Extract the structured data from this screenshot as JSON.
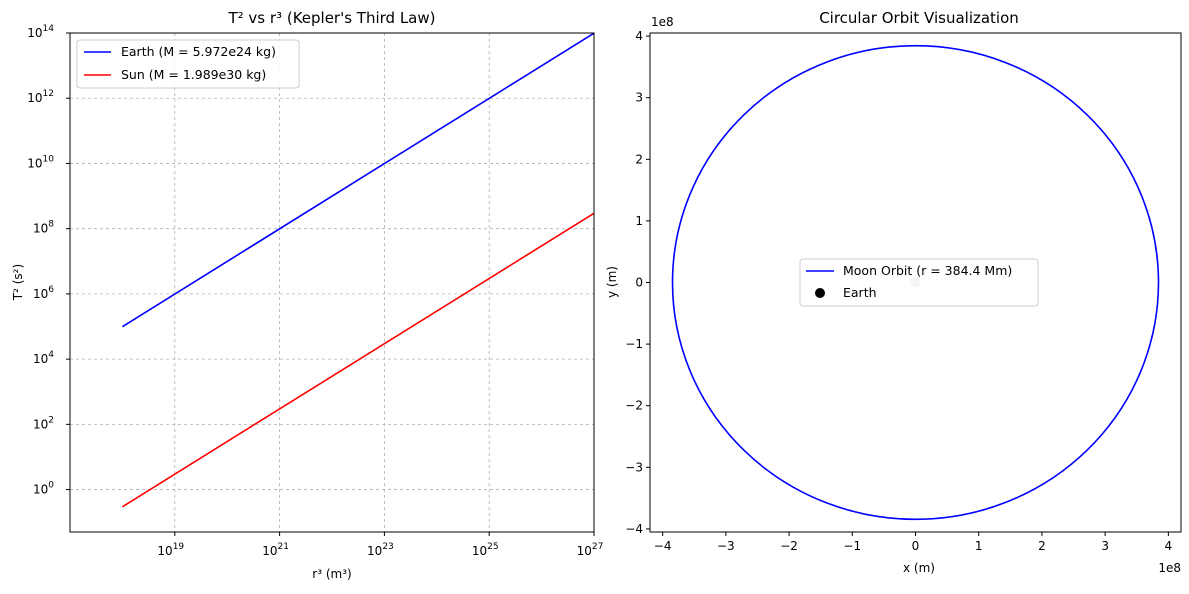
{
  "chart_data": [
    {
      "type": "line",
      "title": "T² vs r³ (Kepler's Third Law)",
      "xlabel": "r³ (m³)",
      "ylabel": "T² (s²)",
      "xscale": "log",
      "yscale": "log",
      "xlim": [
        1e+17,
        1e+27
      ],
      "ylim": [
        0.05,
        100000000000000.0
      ],
      "grid": true,
      "legend_position": "top-left",
      "x_ticks": [
        {
          "base": "10",
          "exp": "19",
          "value": 1e+19
        },
        {
          "base": "10",
          "exp": "21",
          "value": 1e+21
        },
        {
          "base": "10",
          "exp": "23",
          "value": 1e+23
        },
        {
          "base": "10",
          "exp": "25",
          "value": 1e+25
        },
        {
          "base": "10",
          "exp": "27",
          "value": 1e+27
        }
      ],
      "y_ticks": [
        {
          "base": "10",
          "exp": "0",
          "value": 1
        },
        {
          "base": "10",
          "exp": "2",
          "value": 100.0
        },
        {
          "base": "10",
          "exp": "4",
          "value": 10000.0
        },
        {
          "base": "10",
          "exp": "6",
          "value": 1000000.0
        },
        {
          "base": "10",
          "exp": "8",
          "value": 100000000.0
        },
        {
          "base": "10",
          "exp": "10",
          "value": 10000000000.0
        },
        {
          "base": "10",
          "exp": "12",
          "value": 1000000000000.0
        },
        {
          "base": "10",
          "exp": "14",
          "value": 100000000000000.0
        }
      ],
      "series": [
        {
          "name": "Earth (M = 5.972e24 kg)",
          "color": "#0000ff",
          "x": [
            1e+18,
            1e+27
          ],
          "y": [
            99000.0,
            99000000000000.0
          ]
        },
        {
          "name": "Sun (M = 1.989e30 kg)",
          "color": "#ff0000",
          "x": [
            1e+18,
            1e+27
          ],
          "y": [
            0.297,
            297000000.0
          ]
        }
      ]
    },
    {
      "type": "line",
      "title": "Circular Orbit Visualization",
      "xlabel": "x (m)",
      "ylabel": "y (m)",
      "x_offset_label": "1e8",
      "y_offset_label": "1e8",
      "xlim": [
        -4.2,
        4.2
      ],
      "ylim": [
        -4.05,
        4.05
      ],
      "grid": false,
      "aspect": "equal",
      "legend_position": "center",
      "x_ticks": [
        "−4",
        "−3",
        "−2",
        "−1",
        "0",
        "1",
        "2",
        "3",
        "4"
      ],
      "y_ticks": [
        "−4",
        "−3",
        "−2",
        "−1",
        "0",
        "1",
        "2",
        "3",
        "4"
      ],
      "orbit": {
        "name": "Moon Orbit (r = 384.4 Mm)",
        "radius": 3.844,
        "color": "#0000ff"
      },
      "body": {
        "name": "Earth",
        "x": 0,
        "y": 0,
        "color": "#000000",
        "plotted_color": "#c0c0c0"
      }
    }
  ]
}
